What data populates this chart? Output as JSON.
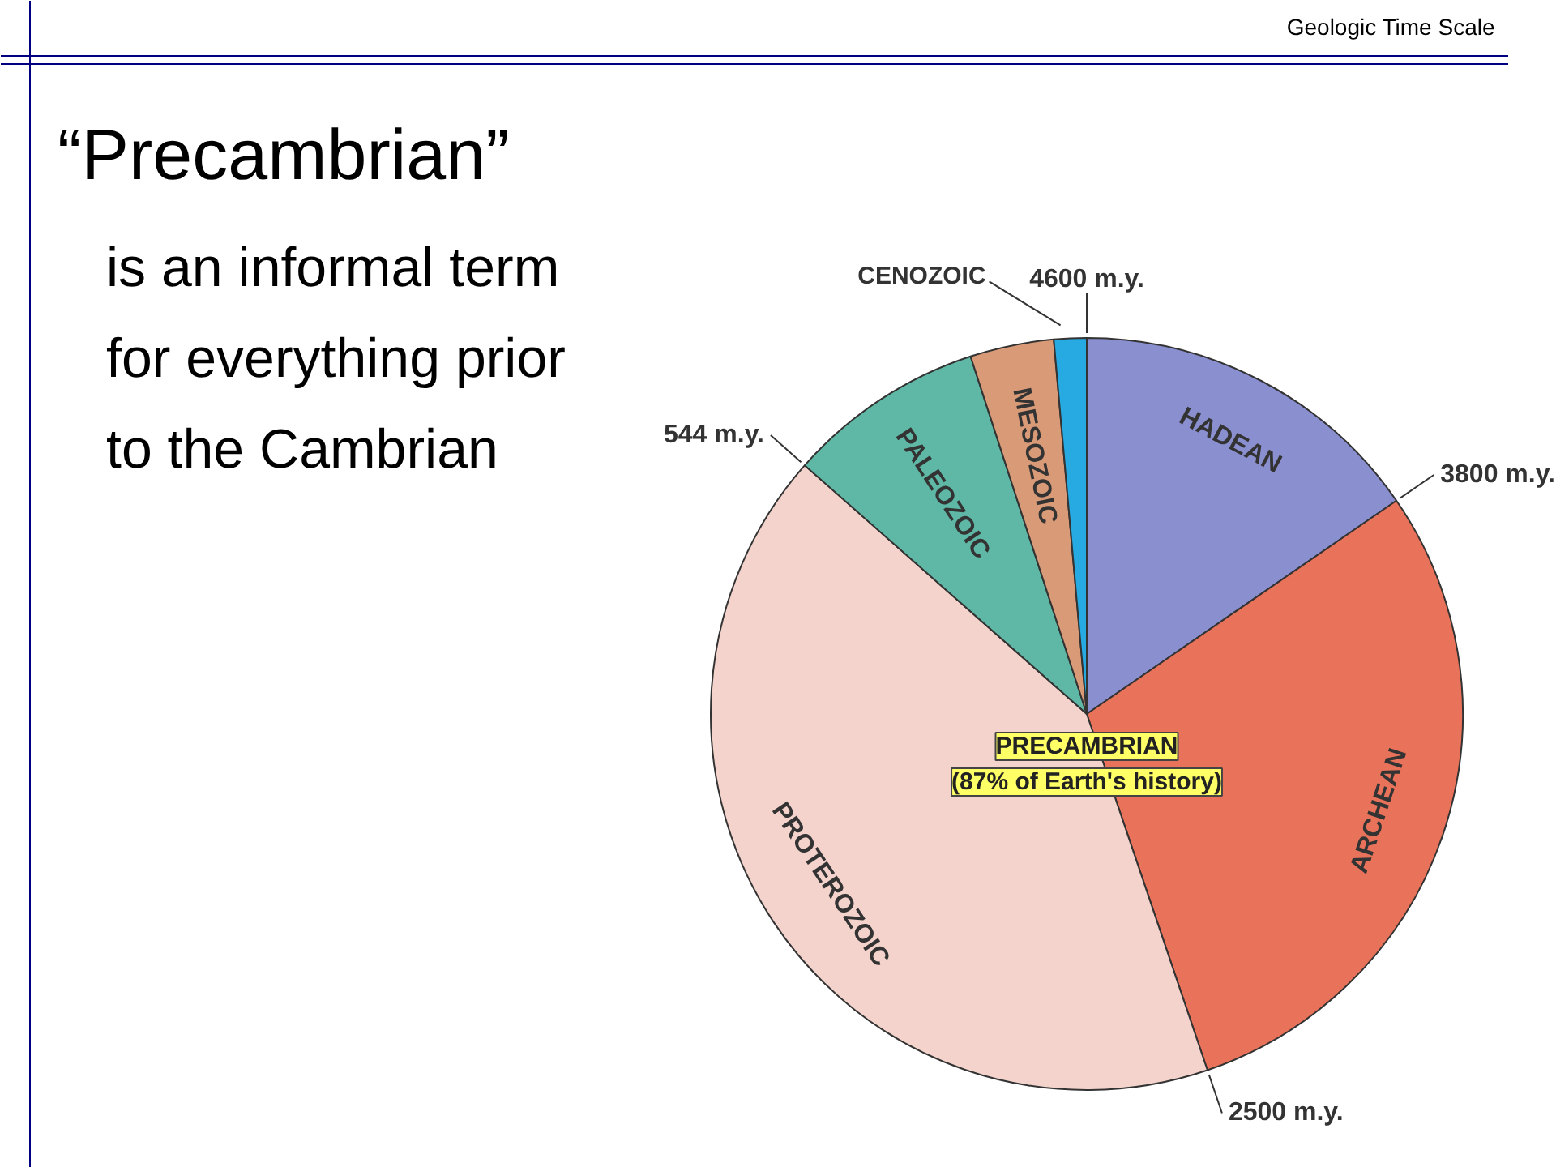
{
  "chart_data": {
    "type": "pie",
    "title": "“Precambrian”",
    "subtitle": "is an informal term for everything prior to the Cambrian",
    "categories": [
      "HADEAN",
      "ARCHEAN",
      "PROTEROZOIC",
      "PALEOZOIC",
      "MESOZOIC",
      "CENOZOIC"
    ],
    "values": [
      15.4,
      29.4,
      41.7,
      8.5,
      3.6,
      1.4
    ],
    "colors": [
      "#8a8fd0",
      "#e8735a",
      "#f3d3cb",
      "#5fb8a6",
      "#d99a78",
      "#27a9e1"
    ],
    "annotations": [
      "Geologic Time Scale",
      "4600 m.y.",
      "3800 m.y.",
      "2500 m.y.",
      "544 m.y.",
      "PRECAMBRIAN (87% of Earth's history)"
    ]
  }
}
